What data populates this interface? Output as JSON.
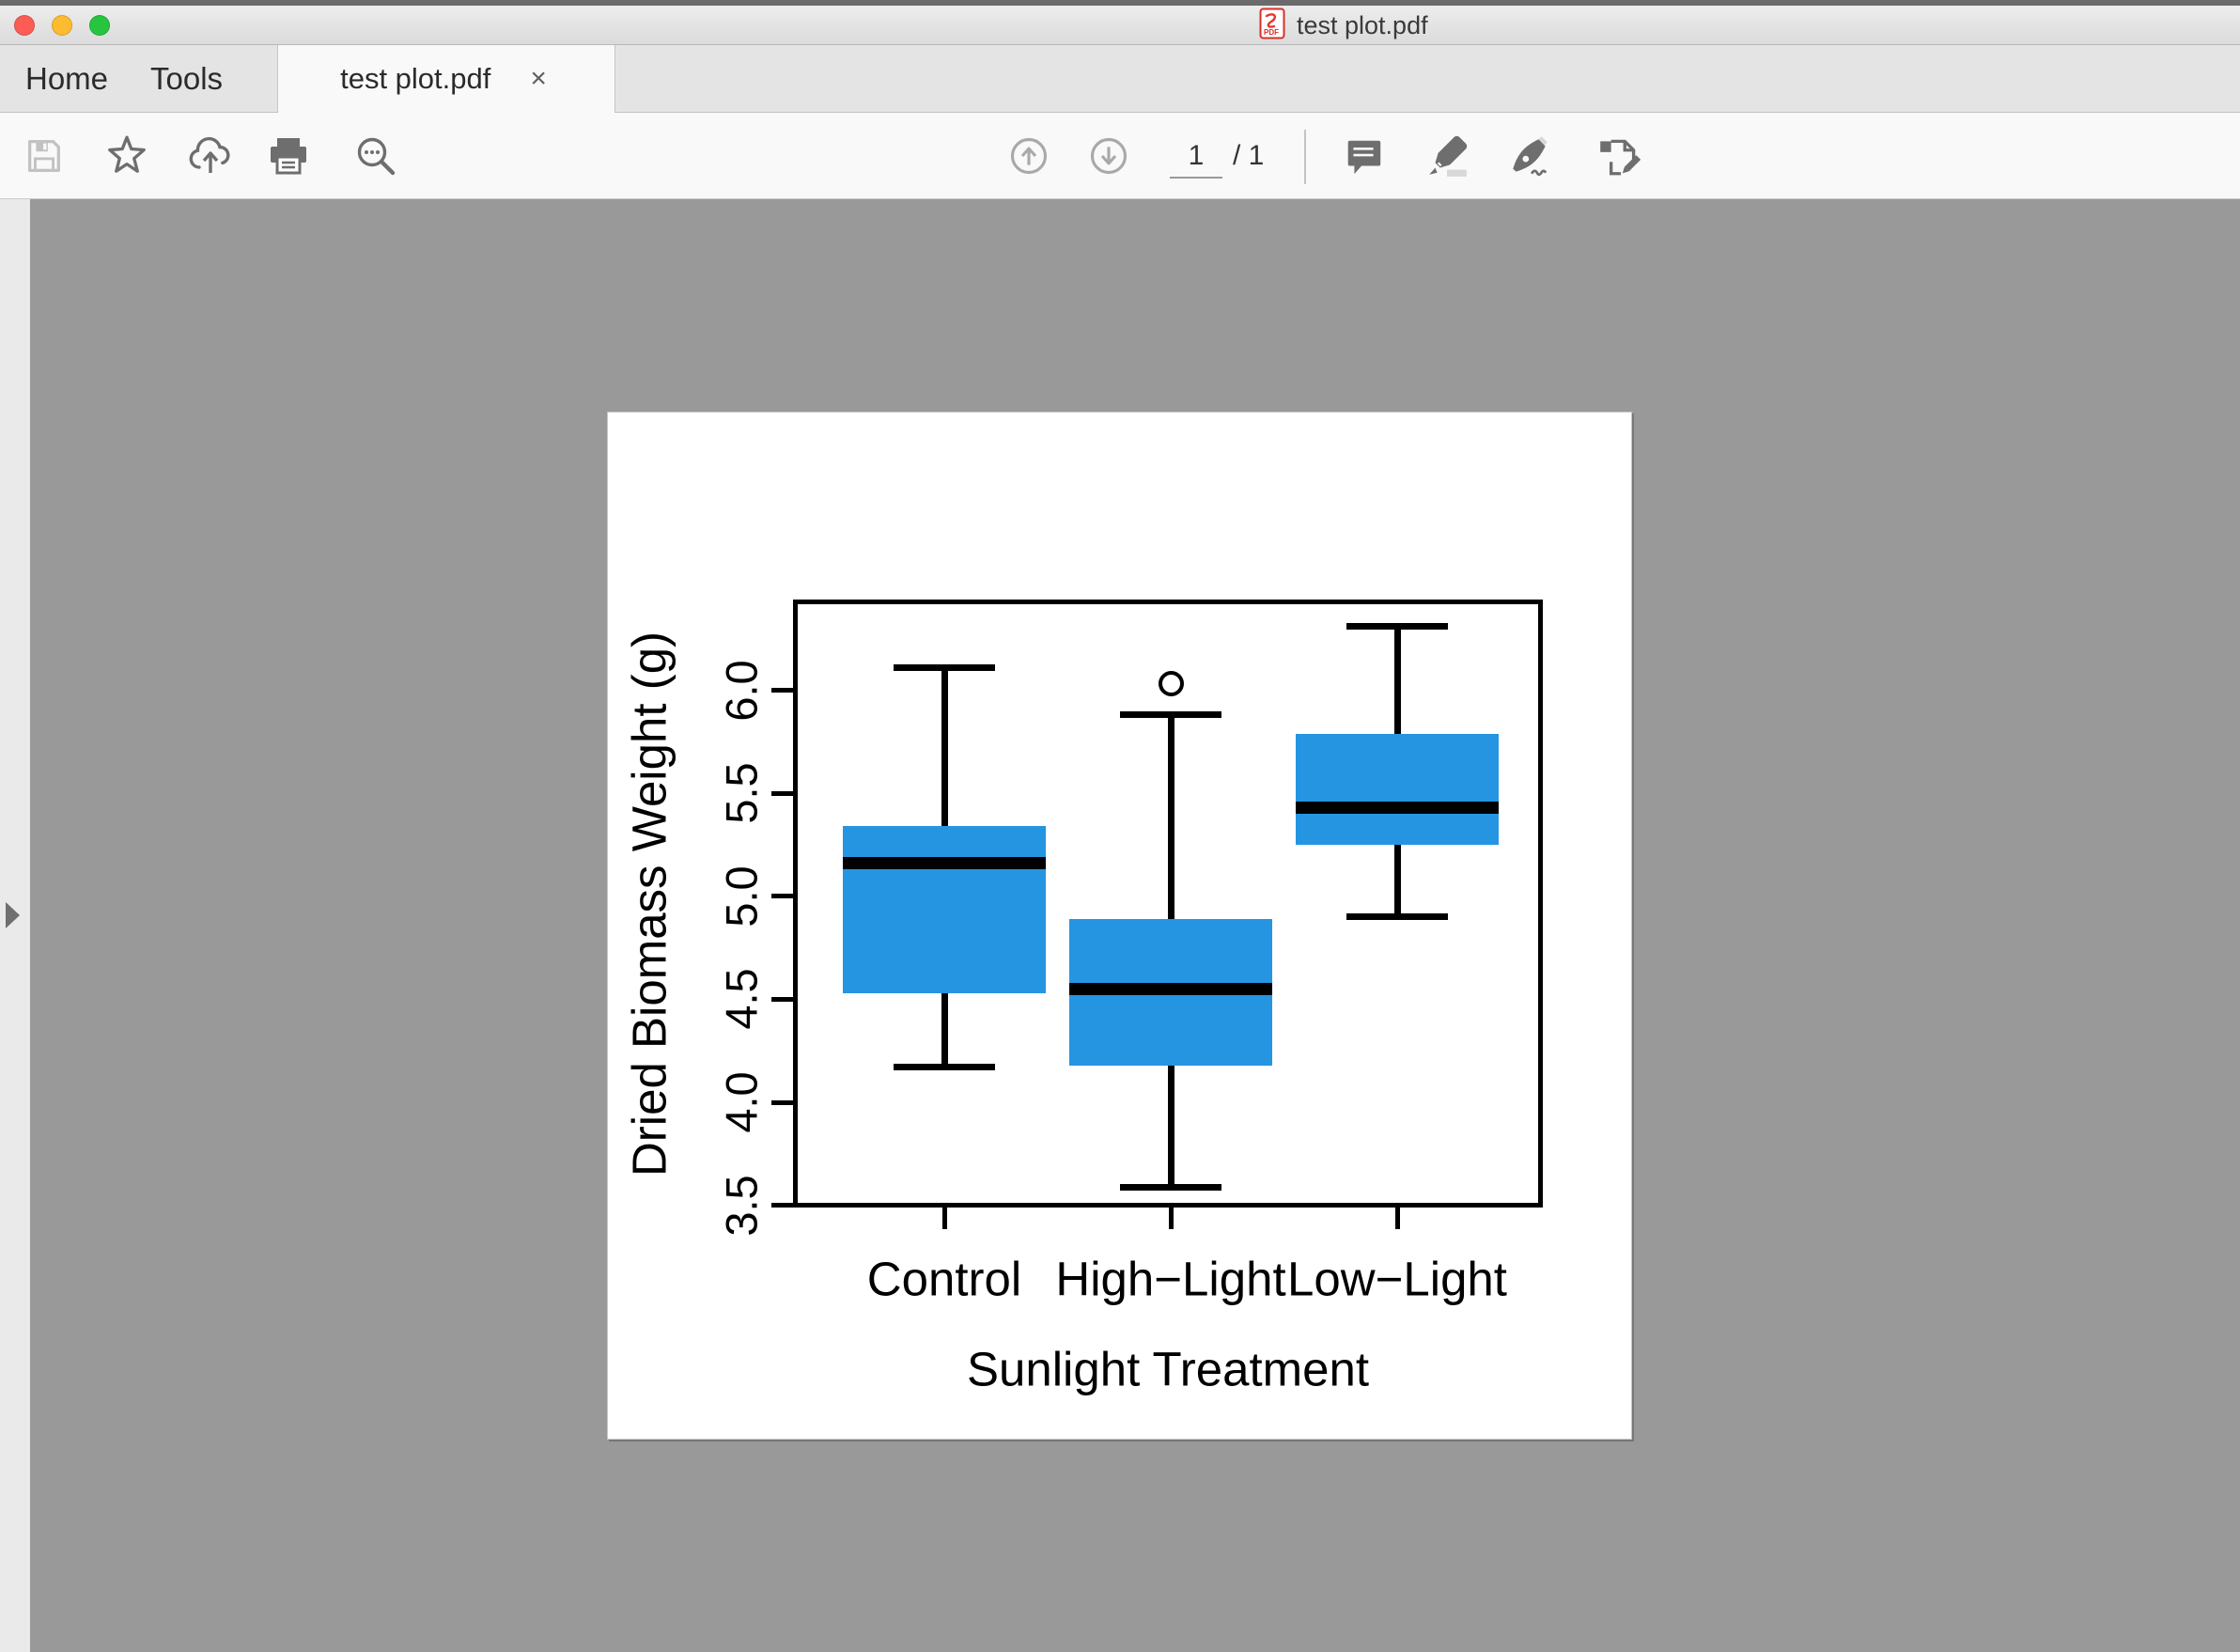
{
  "window": {
    "title": "test plot.pdf",
    "traffic_lights": {
      "close": "#FB5D55",
      "minimize": "#FDBB2F",
      "zoom": "#27C53F"
    },
    "pdf_proxy_icon": "pdf-file-icon"
  },
  "tab_bar": {
    "home_label": "Home",
    "tools_label": "Tools",
    "document_tab_label": "test plot.pdf",
    "close_symbol": "×"
  },
  "toolbar": {
    "left_icons": [
      "save-icon",
      "star-icon",
      "cloud-upload-icon",
      "print-icon",
      "search-icon"
    ],
    "nav_icons": [
      "page-up-icon",
      "page-down-icon"
    ],
    "page_current": "1",
    "page_total_label": "/ 1",
    "annotate_icons": [
      "comment-icon",
      "highlighter-icon",
      "sign-icon",
      "fill-sign-icon"
    ]
  },
  "side_panel": {
    "expand_icon": "expand-panel-arrow-icon"
  },
  "document": {
    "background_color": "#999999",
    "page_color": "#FFFFFF"
  },
  "chart_data": {
    "type": "boxplot",
    "title": "",
    "xlabel": "Sunlight Treatment",
    "ylabel": "Dried Biomass Weight (g)",
    "categories": [
      "Control",
      "High−Light",
      "Low−Light"
    ],
    "ytick_values": [
      3.5,
      4.0,
      4.5,
      5.0,
      5.5,
      6.0
    ],
    "ytick_labels": [
      "3.5",
      "4.0",
      "4.5",
      "5.0",
      "5.5",
      "6.0"
    ],
    "ylim": [
      3.49,
      6.44
    ],
    "grid": false,
    "box_color": "#2595E1",
    "line_color": "#000000",
    "series": [
      {
        "name": "Control",
        "whisker_low": 4.17,
        "q1": 4.53,
        "median": 5.16,
        "q3": 5.34,
        "whisker_high": 6.11,
        "outliers": []
      },
      {
        "name": "High−Light",
        "whisker_low": 3.59,
        "q1": 4.18,
        "median": 4.55,
        "q3": 4.89,
        "whisker_high": 5.88,
        "outliers": [
          6.03
        ]
      },
      {
        "name": "Low−Light",
        "whisker_low": 4.9,
        "q1": 5.25,
        "median": 5.43,
        "q3": 5.79,
        "whisker_high": 6.31,
        "outliers": []
      }
    ]
  }
}
